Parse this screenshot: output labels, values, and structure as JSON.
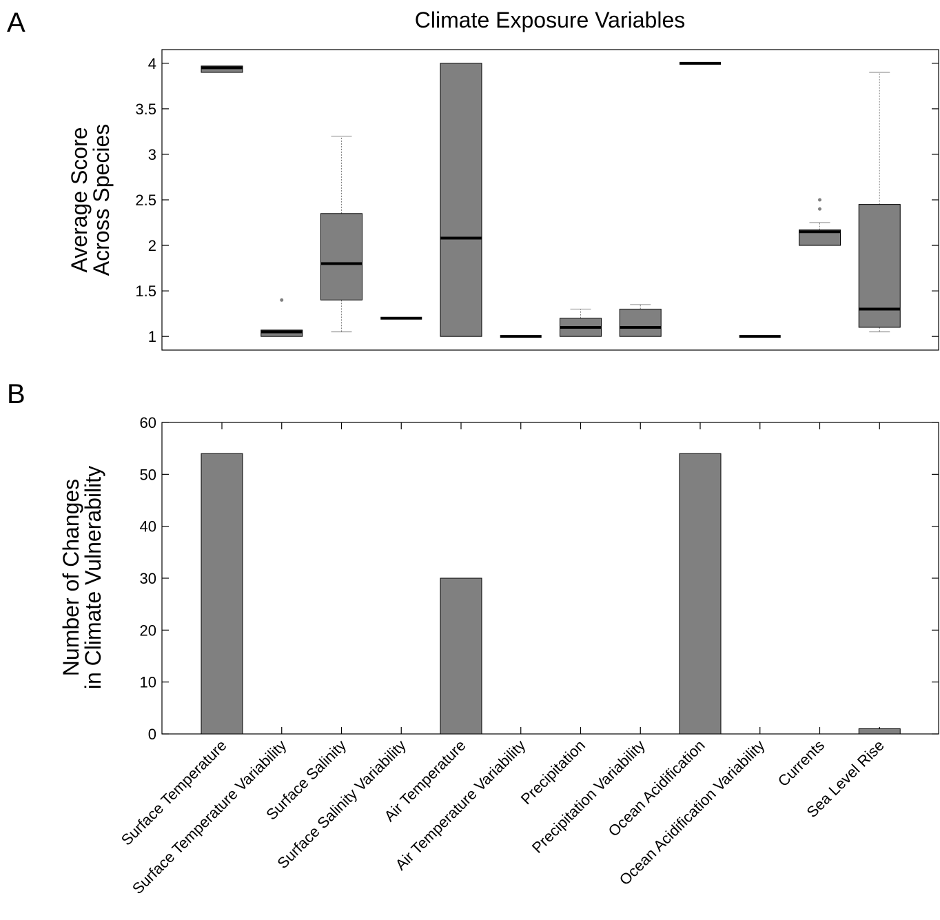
{
  "figure": {
    "title": "Climate Exposure Variables",
    "categories": [
      "Surface Temperature",
      "Surface Temperature Variability",
      "Surface Salinity",
      "Surface Salinity Variability",
      "Air Temperature",
      "Air Temperature Variability",
      "Precipitation",
      "Precipitation Variability",
      "Ocean Acidification",
      "Ocean Acidification Variability",
      "Currents",
      "Sea Level Rise"
    ],
    "colors": {
      "box_fill": "#808080",
      "bar_fill": "#808080",
      "median": "#000000",
      "whisker": "#808080",
      "outlier": "#808080"
    }
  },
  "chart_data": [
    {
      "type": "box",
      "panel_label": "A",
      "title": "Climate Exposure Variables",
      "ylabel_lines": [
        "Average Score",
        "Across Species"
      ],
      "ylim": [
        0.85,
        4.15
      ],
      "yticks": [
        1,
        1.5,
        2,
        2.5,
        3,
        3.5,
        4
      ],
      "ytick_labels": [
        "1",
        "1.5",
        "2",
        "2.5",
        "3",
        "3.5",
        "4"
      ],
      "grid": false,
      "boxes": [
        {
          "category": "Surface Temperature",
          "q1": 3.9,
          "median": 3.95,
          "q3": 3.97,
          "whisker_low": 3.9,
          "whisker_high": 3.97,
          "outliers": []
        },
        {
          "category": "Surface Temperature Variability",
          "q1": 1.0,
          "median": 1.05,
          "q3": 1.07,
          "whisker_low": 1.0,
          "whisker_high": 1.07,
          "outliers": [
            1.4
          ]
        },
        {
          "category": "Surface Salinity",
          "q1": 1.4,
          "median": 1.8,
          "q3": 2.35,
          "whisker_low": 1.05,
          "whisker_high": 3.2,
          "outliers": []
        },
        {
          "category": "Surface Salinity Variability",
          "q1": 1.2,
          "median": 1.2,
          "q3": 1.2,
          "whisker_low": 1.2,
          "whisker_high": 1.2,
          "outliers": []
        },
        {
          "category": "Air Temperature",
          "q1": 1.0,
          "median": 2.08,
          "q3": 4.0,
          "whisker_low": 1.0,
          "whisker_high": 4.0,
          "outliers": []
        },
        {
          "category": "Air Temperature Variability",
          "q1": 1.0,
          "median": 1.0,
          "q3": 1.0,
          "whisker_low": 1.0,
          "whisker_high": 1.0,
          "outliers": []
        },
        {
          "category": "Precipitation",
          "q1": 1.0,
          "median": 1.1,
          "q3": 1.2,
          "whisker_low": 1.0,
          "whisker_high": 1.3,
          "outliers": []
        },
        {
          "category": "Precipitation Variability",
          "q1": 1.0,
          "median": 1.1,
          "q3": 1.3,
          "whisker_low": 1.0,
          "whisker_high": 1.35,
          "outliers": []
        },
        {
          "category": "Ocean Acidification",
          "q1": 4.0,
          "median": 4.0,
          "q3": 4.0,
          "whisker_low": 4.0,
          "whisker_high": 4.0,
          "outliers": []
        },
        {
          "category": "Ocean Acidification Variability",
          "q1": 1.0,
          "median": 1.0,
          "q3": 1.0,
          "whisker_low": 1.0,
          "whisker_high": 1.0,
          "outliers": []
        },
        {
          "category": "Currents",
          "q1": 2.0,
          "median": 2.15,
          "q3": 2.17,
          "whisker_low": 2.0,
          "whisker_high": 2.25,
          "outliers": [
            2.4,
            2.5
          ]
        },
        {
          "category": "Sea Level Rise",
          "q1": 1.1,
          "median": 1.3,
          "q3": 2.45,
          "whisker_low": 1.05,
          "whisker_high": 3.9,
          "outliers": []
        }
      ]
    },
    {
      "type": "bar",
      "panel_label": "B",
      "ylabel_lines": [
        "Number of Changes",
        "in Climate Vulnerability"
      ],
      "ylim": [
        0,
        60
      ],
      "yticks": [
        0,
        10,
        20,
        30,
        40,
        50,
        60
      ],
      "ytick_labels": [
        "0",
        "10",
        "20",
        "30",
        "40",
        "50",
        "60"
      ],
      "grid": false,
      "categories": [
        "Surface Temperature",
        "Surface Temperature Variability",
        "Surface Salinity",
        "Surface Salinity Variability",
        "Air Temperature",
        "Air Temperature Variability",
        "Precipitation",
        "Precipitation Variability",
        "Ocean Acidification",
        "Ocean Acidification Variability",
        "Currents",
        "Sea Level Rise"
      ],
      "values": [
        54,
        0,
        0,
        0,
        30,
        0,
        0,
        0,
        54,
        0,
        0,
        1
      ]
    }
  ]
}
